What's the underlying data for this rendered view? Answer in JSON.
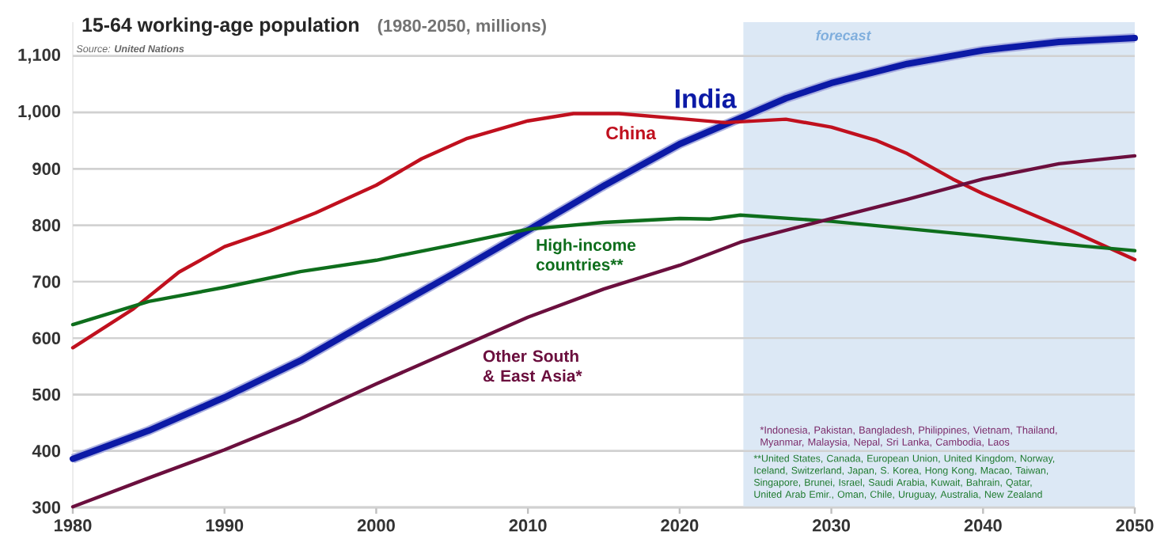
{
  "chart_data": {
    "type": "line",
    "title": "15-64 working-age population",
    "subtitle": "(1980-2050, millions)",
    "x": [
      1980,
      1984,
      1985,
      1987,
      1990,
      1993,
      1995,
      1996,
      2000,
      2003,
      2005,
      2006,
      2010,
      2013,
      2015,
      2016,
      2020,
      2022,
      2023,
      2024,
      2027,
      2030,
      2033,
      2035,
      2038,
      2040,
      2043,
      2045,
      2046,
      2050
    ],
    "series": [
      {
        "name": "India",
        "color": "#0c1aa6",
        "values": [
          386,
          null,
          436,
          null,
          495,
          null,
          560,
          null,
          637,
          null,
          713,
          null,
          791,
          null,
          870,
          null,
          944,
          null,
          null,
          990,
          1025,
          1052,
          null,
          1086,
          null,
          1110,
          null,
          1125,
          null,
          1132
        ]
      },
      {
        "name": "China",
        "color": "#c0101e",
        "values": [
          583,
          652,
          null,
          717,
          762,
          790,
          null,
          822,
          871,
          918,
          null,
          954,
          985,
          998,
          null,
          998,
          989,
          null,
          982,
          null,
          988,
          974,
          950,
          927,
          882,
          856,
          822,
          null,
          788,
          739
        ]
      },
      {
        "name": "High-income countries**",
        "color": "#0e6e1c",
        "values": [
          624,
          null,
          665,
          null,
          690,
          null,
          718,
          null,
          738,
          null,
          765,
          null,
          793,
          null,
          805,
          null,
          812,
          811,
          null,
          818,
          null,
          807,
          null,
          794,
          null,
          781,
          null,
          767,
          null,
          755
        ]
      },
      {
        "name": "Other South & East Asia*",
        "color": "#6b0f3e",
        "values": [
          301,
          null,
          352,
          null,
          402,
          null,
          457,
          null,
          519,
          null,
          578,
          null,
          637,
          null,
          687,
          null,
          729,
          null,
          null,
          770,
          null,
          812,
          null,
          846,
          null,
          882,
          null,
          909,
          null,
          923
        ]
      }
    ],
    "xlim": [
      1980,
      2050
    ],
    "xticks": [
      1980,
      1990,
      2000,
      2010,
      2020,
      2030,
      2040,
      2050
    ],
    "ylim": [
      300,
      1160
    ],
    "yticks": [
      300,
      400,
      500,
      600,
      700,
      800,
      900,
      {
        "value": 1000,
        "label": "1,000"
      },
      {
        "value": 1100,
        "label": "1,100"
      }
    ],
    "grid": "y",
    "bands": [
      {
        "axis": "x",
        "from": 2024.2,
        "to": 2050,
        "label": "forecast",
        "color": "#dce8f5"
      }
    ],
    "annotations": [
      "Source: **United Nations**",
      "*Indonesia, Pakistan, Bangladesh, Philippines, Vietnam, Thailand, Myanmar, Malaysia, Nepal, Sri Lanka, Cambodia, Laos",
      "**United States, Canada, European Union, United Kingdom, Norway, Iceland, Switzerland, Japan, S. Korea, Hong Kong, Macao, Taiwan, Singapore, Brunei, Israel, Saudi Arabia, Kuwait, Bahrain, Qatar, United Arab Emir., Oman, Chile, Uruguay, Australia, New Zealand"
    ]
  }
}
